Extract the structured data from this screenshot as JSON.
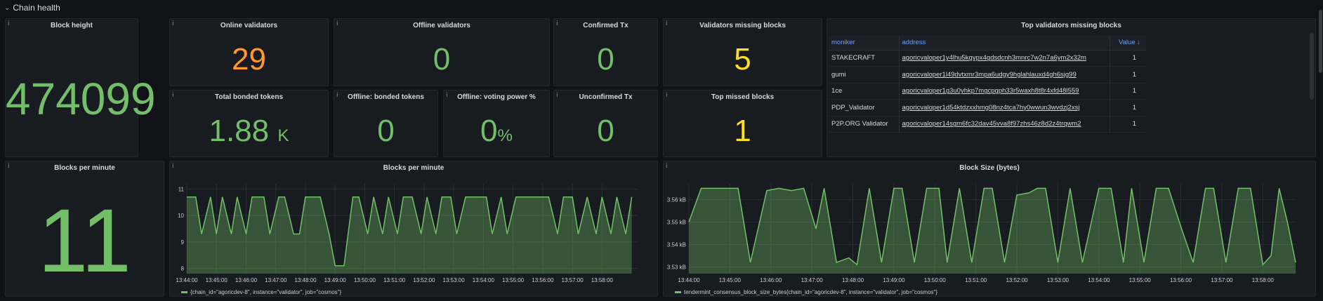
{
  "row": {
    "title": "Chain health",
    "chevron": "chevron-down-icon"
  },
  "info_icon": "i",
  "panels": {
    "block_height": {
      "title": "Block height",
      "value": "474099"
    },
    "online_validators": {
      "title": "Online validators",
      "value": "29"
    },
    "offline_validators": {
      "title": "Offline validators",
      "value": "0"
    },
    "confirmed_tx": {
      "title": "Confirmed Tx",
      "value": "0"
    },
    "validators_missing_blocks": {
      "title": "Validators missing blocks",
      "value": "5"
    },
    "total_bonded_tokens": {
      "title": "Total bonded tokens",
      "value": "1.88",
      "unit": "K"
    },
    "offline_bonded_tokens": {
      "title": "Offline: bonded tokens",
      "value": "0"
    },
    "offline_voting_power": {
      "title": "Offline: voting power %",
      "value": "0",
      "unit": "%"
    },
    "unconfirmed_tx": {
      "title": "Unconfirmed Tx",
      "value": "0"
    },
    "top_missed_blocks": {
      "title": "Top missed blocks",
      "value": "1"
    },
    "blocks_per_minute_stat": {
      "title": "Blocks per minute",
      "value": "11"
    },
    "top_validators_table": {
      "title": "Top validators missing blocks",
      "headers": {
        "moniker": "moniker",
        "address": "address",
        "value": "Value ↓"
      },
      "rows": [
        {
          "moniker": "STAKECRAFT",
          "address": "agoricvaloper1y4lhu5kgypx4gdsdcnh3mnrc7w2n7a6ym2x32m",
          "value": "1"
        },
        {
          "moniker": "gumi",
          "address": "agoricvaloper1l49dvtxmr3mpa6udgy9hglahlauxd4gh6sjg99",
          "value": "1"
        },
        {
          "moniker": "1ce",
          "address": "agoricvaloper1g3u0yhkp7mgcpgph33r5waxh8t8r4xfd48l559",
          "value": "1"
        },
        {
          "moniker": "PDP_Validator",
          "address": "agoricvaloper1d54ktdzxxhmg08nz4tca7hy0wwun3wvdzj2xsj",
          "value": "1"
        },
        {
          "moniker": "P2P.ORG Validator",
          "address": "agoricvaloper14sgm6fc32dav45vva8f97zhs46z8d2z4trqwm2",
          "value": "1"
        }
      ]
    }
  },
  "chart_data": [
    {
      "type": "area",
      "title": "Blocks per minute",
      "x_ticks": [
        "13:44:00",
        "13:45:00",
        "13:46:00",
        "13:47:00",
        "13:48:00",
        "13:49:00",
        "13:50:00",
        "13:51:00",
        "13:52:00",
        "13:53:00",
        "13:54:00",
        "13:55:00",
        "13:56:00",
        "13:57:00",
        "13:58:00"
      ],
      "y_ticks": [
        "8",
        "9",
        "10",
        "11"
      ],
      "ylim": [
        7.8,
        11.2
      ],
      "xlim": [
        0,
        15.2
      ],
      "series": [
        {
          "name": "{chain_id=\"agoricdev-8\", instance=\"validator\", job=\"cosmos\"}",
          "color": "#73bf69",
          "x": [
            0,
            0.3,
            0.5,
            0.8,
            1.0,
            1.2,
            1.5,
            1.7,
            2.0,
            2.2,
            2.6,
            2.8,
            3.1,
            3.3,
            3.6,
            3.8,
            4.0,
            4.3,
            4.5,
            4.8,
            5.0,
            5.3,
            5.6,
            5.8,
            6.1,
            6.3,
            6.6,
            6.8,
            7.1,
            7.3,
            7.6,
            7.9,
            8.1,
            8.4,
            8.6,
            8.9,
            9.1,
            9.4,
            9.6,
            10.1,
            10.3,
            10.6,
            10.8,
            11.1,
            11.3,
            11.6,
            12.2,
            12.5,
            12.7,
            13.0,
            13.2,
            13.5,
            13.8,
            14.0,
            14.3,
            14.5,
            14.8,
            15.0
          ],
          "y": [
            10.7,
            10.7,
            9.3,
            10.7,
            9.3,
            10.7,
            9.3,
            10.7,
            9.3,
            10.7,
            10.7,
            9.3,
            10.7,
            10.7,
            9.3,
            9.3,
            10.7,
            10.7,
            10.7,
            9.3,
            8.1,
            8.1,
            10.7,
            10.7,
            9.3,
            10.7,
            9.3,
            10.7,
            9.3,
            10.7,
            10.7,
            9.3,
            10.7,
            9.3,
            10.7,
            10.7,
            9.3,
            10.7,
            10.7,
            10.7,
            9.3,
            10.7,
            9.3,
            10.7,
            10.7,
            10.7,
            10.7,
            9.3,
            10.7,
            10.7,
            9.3,
            10.7,
            9.3,
            10.7,
            9.3,
            10.7,
            9.3,
            10.7
          ]
        }
      ]
    },
    {
      "type": "area",
      "title": "Block Size (bytes)",
      "x_ticks": [
        "13:44:00",
        "13:45:00",
        "13:46:00",
        "13:47:00",
        "13:48:00",
        "13:49:00",
        "13:50:00",
        "13:51:00",
        "13:52:00",
        "13:53:00",
        "13:54:00",
        "13:55:00",
        "13:56:00",
        "13:57:00",
        "13:58:00"
      ],
      "y_ticks": [
        "3.53 kB",
        "3.54 kB",
        "3.55 kB",
        "3.56 kB"
      ],
      "ylim": [
        3.527,
        3.567
      ],
      "xlim": [
        0,
        14.8
      ],
      "series": [
        {
          "name": "tendermint_consensus_block_size_bytes{chain_id=\"agoricdev-8\", instance=\"validator\", job=\"cosmos\"}",
          "color": "#73bf69",
          "x": [
            0,
            0.3,
            1.2,
            1.5,
            1.9,
            2.2,
            2.5,
            2.8,
            3.1,
            3.3,
            3.6,
            3.9,
            4.1,
            4.4,
            4.7,
            5.0,
            5.2,
            5.5,
            5.8,
            6.1,
            6.3,
            6.6,
            6.9,
            7.2,
            7.4,
            7.7,
            8.0,
            8.3,
            8.5,
            8.7,
            9.0,
            9.3,
            9.6,
            10.0,
            10.3,
            10.6,
            10.8,
            11.1,
            11.4,
            11.7,
            12.0,
            12.3,
            12.6,
            12.8,
            13.1,
            13.4,
            13.7,
            14.0,
            14.2,
            14.4,
            14.6,
            14.8
          ],
          "y": [
            3.55,
            3.565,
            3.565,
            3.532,
            3.564,
            3.565,
            3.564,
            3.565,
            3.547,
            3.565,
            3.532,
            3.534,
            3.531,
            3.565,
            3.532,
            3.565,
            3.565,
            3.532,
            3.565,
            3.565,
            3.532,
            3.565,
            3.532,
            3.565,
            3.565,
            3.532,
            3.562,
            3.563,
            3.565,
            3.565,
            3.532,
            3.565,
            3.532,
            3.565,
            3.565,
            3.532,
            3.565,
            3.532,
            3.565,
            3.565,
            3.548,
            3.532,
            3.565,
            3.565,
            3.532,
            3.565,
            3.565,
            3.531,
            3.535,
            3.565,
            3.55,
            3.532
          ]
        }
      ]
    }
  ]
}
